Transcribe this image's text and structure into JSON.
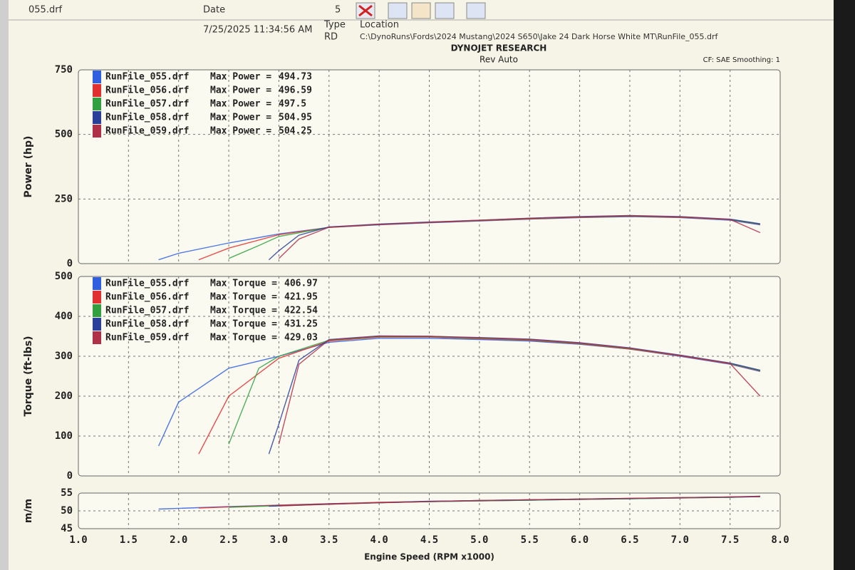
{
  "header": {
    "file": "055.drf",
    "date_label": "Date",
    "date": "7/25/2025 11:34:56 AM",
    "type_label": "Type",
    "type": "RD",
    "location_label": "Location",
    "location": "C:\\DynoRuns\\Fords\\2024 Mustang\\2024 S650\\Jake 24 Dark Horse White MT\\RunFile_055.drf",
    "toolbar_count": "5",
    "company": "DYNOJET RESEARCH",
    "shop": "Rev Auto",
    "correction": "CF: SAE  Smoothing: 1"
  },
  "chart_data": [
    {
      "type": "line",
      "y_label": "Power (hp)",
      "max_label": "Max Power =",
      "ylim": [
        0,
        750
      ],
      "yticks": [
        0,
        250,
        500,
        750
      ],
      "grid": true,
      "series": [
        {
          "name": "RunFile_055.drf",
          "color": "#2f5fe0",
          "max": 494.73,
          "x": [
            1.8,
            2.0,
            2.5,
            3.0,
            3.5,
            4.0,
            4.5,
            5.0,
            5.5,
            6.0,
            6.5,
            7.0,
            7.5,
            7.8
          ],
          "values": [
            15,
            40,
            80,
            115,
            140,
            150,
            158,
            165,
            172,
            178,
            182,
            178,
            168,
            150
          ]
        },
        {
          "name": "RunFile_056.drf",
          "color": "#e03030",
          "max": 496.59,
          "x": [
            2.2,
            2.5,
            3.0,
            3.5,
            4.0,
            4.5,
            5.0,
            5.5,
            6.0,
            6.5,
            7.0,
            7.5,
            7.8
          ],
          "values": [
            15,
            60,
            112,
            140,
            151,
            159,
            166,
            173,
            179,
            183,
            179,
            170,
            152
          ]
        },
        {
          "name": "RunFile_057.drf",
          "color": "#30a040",
          "max": 497.5,
          "x": [
            2.5,
            2.8,
            3.0,
            3.5,
            4.0,
            4.5,
            5.0,
            5.5,
            6.0,
            6.5,
            7.0,
            7.5,
            7.8
          ],
          "values": [
            20,
            70,
            105,
            141,
            152,
            160,
            167,
            174,
            180,
            184,
            180,
            171,
            153
          ]
        },
        {
          "name": "RunFile_058.drf",
          "color": "#2a3f9a",
          "max": 504.95,
          "x": [
            2.9,
            3.0,
            3.2,
            3.5,
            4.0,
            4.5,
            5.0,
            5.5,
            6.0,
            6.5,
            7.0,
            7.5,
            7.8
          ],
          "values": [
            15,
            50,
            110,
            142,
            153,
            161,
            168,
            176,
            182,
            186,
            182,
            172,
            154
          ]
        },
        {
          "name": "RunFile_059.drf",
          "color": "#b03048",
          "max": 504.25,
          "x": [
            3.0,
            3.2,
            3.5,
            4.0,
            4.5,
            5.0,
            5.5,
            6.0,
            6.5,
            7.0,
            7.5,
            7.8
          ],
          "values": [
            20,
            95,
            141,
            152,
            160,
            168,
            175,
            181,
            185,
            181,
            171,
            120
          ]
        }
      ]
    },
    {
      "type": "line",
      "y_label": "Torque (ft-lbs)",
      "max_label": "Max Torque =",
      "ylim": [
        0,
        500
      ],
      "yticks": [
        0,
        100,
        200,
        300,
        400,
        500
      ],
      "grid": true,
      "series": [
        {
          "name": "RunFile_055.drf",
          "color": "#2f5fe0",
          "max": 406.97,
          "x": [
            1.8,
            2.0,
            2.5,
            3.0,
            3.5,
            4.0,
            4.5,
            5.0,
            5.5,
            6.0,
            6.5,
            7.0,
            7.5,
            7.8
          ],
          "values": [
            75,
            185,
            270,
            300,
            335,
            345,
            345,
            342,
            338,
            330,
            318,
            300,
            280,
            262
          ]
        },
        {
          "name": "RunFile_056.drf",
          "color": "#e03030",
          "max": 421.95,
          "x": [
            2.2,
            2.5,
            3.0,
            3.5,
            4.0,
            4.5,
            5.0,
            5.5,
            6.0,
            6.5,
            7.0,
            7.5,
            7.8
          ],
          "values": [
            55,
            200,
            295,
            338,
            348,
            348,
            344,
            340,
            331,
            318,
            301,
            281,
            263
          ]
        },
        {
          "name": "RunFile_057.drf",
          "color": "#30a040",
          "max": 422.54,
          "x": [
            2.5,
            2.8,
            3.0,
            3.5,
            4.0,
            4.5,
            5.0,
            5.5,
            6.0,
            6.5,
            7.0,
            7.5,
            7.8
          ],
          "values": [
            80,
            270,
            300,
            340,
            349,
            349,
            345,
            341,
            332,
            319,
            302,
            282,
            264
          ]
        },
        {
          "name": "RunFile_058.drf",
          "color": "#2a3f9a",
          "max": 431.25,
          "x": [
            2.9,
            3.0,
            3.2,
            3.5,
            4.0,
            4.5,
            5.0,
            5.5,
            6.0,
            6.5,
            7.0,
            7.5,
            7.8
          ],
          "values": [
            55,
            130,
            290,
            342,
            351,
            350,
            347,
            343,
            334,
            321,
            303,
            283,
            265
          ]
        },
        {
          "name": "RunFile_059.drf",
          "color": "#b03048",
          "max": 429.03,
          "x": [
            3.0,
            3.2,
            3.5,
            4.0,
            4.5,
            5.0,
            5.5,
            6.0,
            6.5,
            7.0,
            7.5,
            7.8
          ],
          "values": [
            80,
            280,
            341,
            350,
            350,
            346,
            342,
            333,
            320,
            302,
            282,
            200
          ]
        }
      ]
    },
    {
      "type": "line",
      "y_label": "m/m",
      "x_label": "Engine Speed (RPM x1000)",
      "ylim": [
        45,
        55
      ],
      "yticks": [
        45,
        50,
        55
      ],
      "grid": true,
      "xlim": [
        1,
        8
      ],
      "xticks": [
        {
          "value": 1,
          "label": "1.0"
        },
        1.5,
        {
          "value": 2,
          "label": "2.0"
        },
        2.5,
        {
          "value": 3,
          "label": "3.0"
        },
        3.5,
        {
          "value": 4,
          "label": "4.0"
        },
        4.5,
        {
          "value": 5,
          "label": "5.0"
        },
        5.5,
        {
          "value": 6,
          "label": "6.0"
        },
        6.5,
        {
          "value": 7,
          "label": "7.0"
        },
        7.5,
        {
          "value": 8,
          "label": "8.0"
        }
      ],
      "series": [
        {
          "name": "RunFile_055.drf",
          "color": "#2f5fe0",
          "x": [
            1.8,
            2.5,
            3.5,
            4.5,
            5.5,
            6.5,
            7.5,
            7.8
          ],
          "values": [
            50.5,
            51.2,
            52,
            52.6,
            53,
            53.4,
            53.8,
            54
          ]
        },
        {
          "name": "RunFile_056.drf",
          "color": "#e03030",
          "x": [
            2.2,
            3.0,
            4.0,
            5.0,
            6.0,
            7.0,
            7.8
          ],
          "values": [
            50.8,
            51.6,
            52.4,
            52.9,
            53.3,
            53.7,
            54
          ]
        },
        {
          "name": "RunFile_057.drf",
          "color": "#30a040",
          "x": [
            2.5,
            3.5,
            4.5,
            5.5,
            6.5,
            7.5,
            7.8
          ],
          "values": [
            51,
            51.9,
            52.6,
            53,
            53.4,
            53.8,
            54.1
          ]
        },
        {
          "name": "RunFile_058.drf",
          "color": "#2a3f9a",
          "x": [
            2.9,
            3.5,
            4.5,
            5.5,
            6.5,
            7.5,
            7.8
          ],
          "values": [
            51.3,
            51.9,
            52.7,
            53.1,
            53.5,
            53.9,
            54.1
          ]
        },
        {
          "name": "RunFile_059.drf",
          "color": "#b03048",
          "x": [
            3.0,
            4.0,
            5.0,
            6.0,
            7.0,
            7.8
          ],
          "values": [
            51.4,
            52.3,
            52.9,
            53.3,
            53.7,
            54
          ]
        }
      ]
    }
  ]
}
